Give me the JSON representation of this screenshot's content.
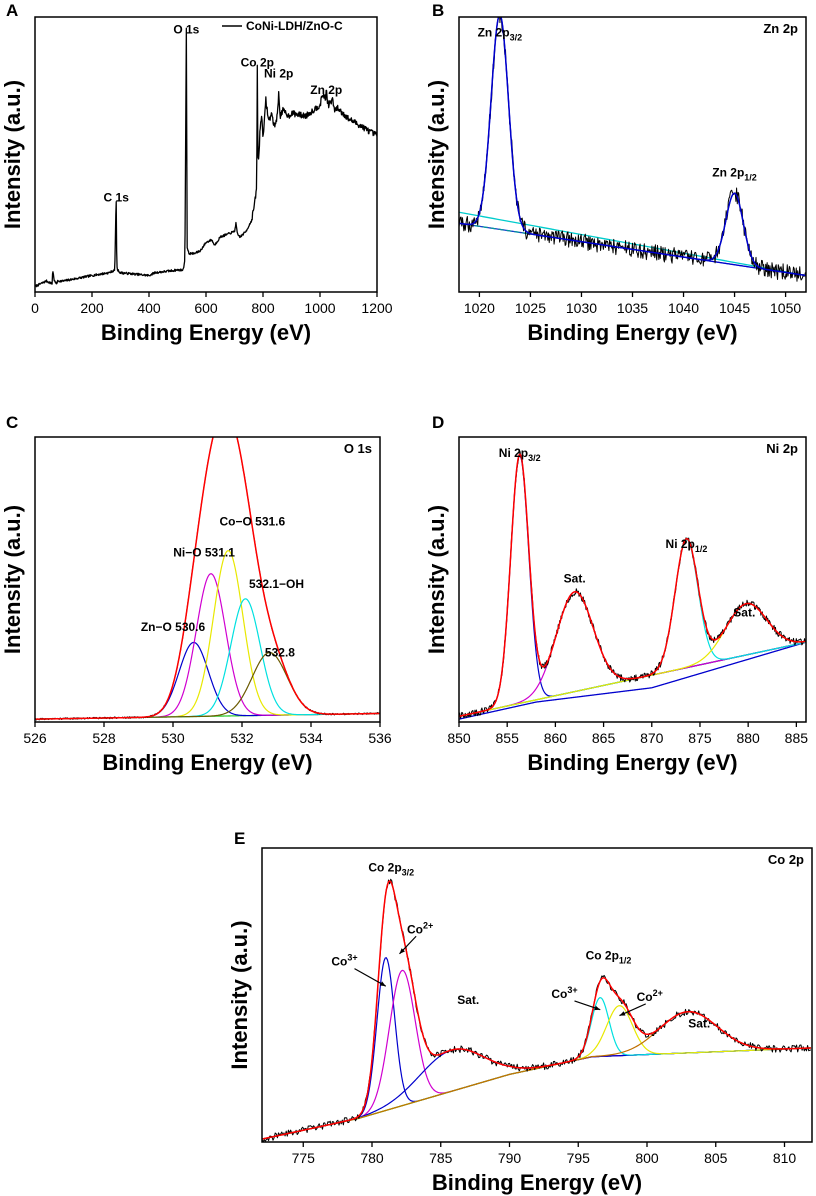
{
  "chart_data": [
    {
      "id": "A",
      "type": "line",
      "panel_label": "A",
      "title": "",
      "xlabel": "Binding Energy (eV)",
      "ylabel": "Intensity (a.u.)",
      "xlim": [
        0,
        1200
      ],
      "ylim": [
        0,
        100
      ],
      "xticks": [
        0,
        200,
        400,
        600,
        800,
        1000,
        1200
      ],
      "legend": [
        "CoNi-LDH/ZnO-C"
      ],
      "annotations": [
        {
          "text": "O 1s",
          "x": 531,
          "y": 94
        },
        {
          "text": "C 1s",
          "x": 285,
          "y": 33
        },
        {
          "text": "Co 2p",
          "x": 780,
          "y": 82
        },
        {
          "text": "Ni 2p",
          "x": 855,
          "y": 78
        },
        {
          "text": "Zn 2p",
          "x": 1022,
          "y": 72
        }
      ],
      "series": [
        {
          "name": "CoNi-LDH/ZnO-C",
          "color": "#000000",
          "x": [
            0,
            40,
            60,
            62,
            68,
            75,
            80,
            100,
            150,
            200,
            260,
            280,
            283,
            285,
            287,
            290,
            300,
            400,
            420,
            500,
            520,
            526,
            531,
            534,
            540,
            560,
            580,
            600,
            620,
            630,
            650,
            700,
            705,
            710,
            720,
            740,
            760,
            770,
            775,
            778,
            780,
            782,
            785,
            790,
            795,
            800,
            805,
            810,
            820,
            830,
            840,
            850,
            855,
            858,
            860,
            870,
            880,
            890,
            900,
            950,
            1000,
            1010,
            1020,
            1022,
            1025,
            1030,
            1045,
            1050,
            1060,
            1080,
            1100,
            1150,
            1180,
            1200
          ],
          "y": [
            2,
            4,
            3,
            8,
            4,
            3,
            4,
            4,
            5,
            6,
            7,
            8,
            26,
            33,
            9,
            8,
            7,
            6,
            7,
            8,
            8,
            12,
            96,
            16,
            14,
            14,
            15,
            18,
            19,
            17,
            20,
            22,
            25,
            21,
            20,
            22,
            26,
            32,
            35,
            40,
            82,
            50,
            48,
            60,
            64,
            57,
            62,
            70,
            62,
            65,
            60,
            64,
            72,
            68,
            64,
            66,
            65,
            64,
            65,
            64,
            68,
            72,
            70,
            75,
            70,
            68,
            70,
            66,
            67,
            65,
            63,
            60,
            58,
            57
          ]
        }
      ]
    },
    {
      "id": "B",
      "type": "line",
      "panel_label": "B",
      "title": "Zn 2p",
      "xlabel": "Binding Energy (eV)",
      "ylabel": "Intensity (a.u.)",
      "xlim": [
        1018,
        1052
      ],
      "ylim": [
        0,
        100
      ],
      "xticks": [
        1020,
        1025,
        1030,
        1035,
        1040,
        1045,
        1050
      ],
      "annotations": [
        {
          "text": "Zn 2p3/2",
          "main": "Zn 2p",
          "sub": "3/2",
          "x": 1022,
          "y": 93
        },
        {
          "text": "Zn 2p1/2",
          "main": "Zn 2p",
          "sub": "1/2",
          "x": 1045,
          "y": 42
        }
      ],
      "background": {
        "x": [
          1018,
          1052
        ],
        "y": [
          25,
          6
        ]
      },
      "shirley": {
        "x": [
          1018,
          1052
        ],
        "y": [
          29,
          6
        ]
      },
      "peaks": [
        {
          "name": "Zn 2p3/2",
          "center": 1022.0,
          "amplitude": 78,
          "fwhm": 2.0,
          "color": "#0000cd"
        },
        {
          "name": "Zn 2p1/2",
          "center": 1045.0,
          "amplitude": 26,
          "fwhm": 2.0,
          "color": "#009999"
        }
      ],
      "envelope_color": "#0000cd",
      "raw_color": "#000000"
    },
    {
      "id": "C",
      "type": "line",
      "panel_label": "C",
      "title": "O 1s",
      "xlabel": "Binding Energy (eV)",
      "ylabel": "Intensity (a.u.)",
      "xlim": [
        526,
        536
      ],
      "ylim": [
        0,
        100
      ],
      "xticks": [
        526,
        528,
        530,
        532,
        534,
        536
      ],
      "annotations": [
        {
          "text": "Co−O 531.6",
          "x": 532.3,
          "y": 69
        },
        {
          "text": "Ni−O 531.1",
          "x": 530.9,
          "y": 58
        },
        {
          "text": "532.1−OH",
          "x": 533.0,
          "y": 47
        },
        {
          "text": "Zn−O 530.6",
          "x": 530.0,
          "y": 32
        },
        {
          "text": "532.8",
          "x": 533.1,
          "y": 23
        }
      ],
      "background": {
        "x": [
          526,
          536
        ],
        "y": [
          1,
          3
        ]
      },
      "peaks": [
        {
          "name": "Zn−O",
          "center": 530.6,
          "amplitude": 26,
          "fwhm": 1.0,
          "color": "#0000cd"
        },
        {
          "name": "Ni−O",
          "center": 531.1,
          "amplitude": 50,
          "fwhm": 1.0,
          "color": "#d000d0"
        },
        {
          "name": "Co−O",
          "center": 531.6,
          "amplitude": 58,
          "fwhm": 1.0,
          "color": "#e8e800"
        },
        {
          "name": "OH",
          "center": 532.1,
          "amplitude": 41,
          "fwhm": 1.0,
          "color": "#00e0e0"
        },
        {
          "name": "532.8",
          "center": 532.8,
          "amplitude": 22,
          "fwhm": 1.2,
          "color": "#6b5a00"
        }
      ],
      "envelope_color": "#ff0000",
      "raw_color": "#000000"
    },
    {
      "id": "D",
      "type": "line",
      "panel_label": "D",
      "title": "Ni 2p",
      "xlabel": "Binding Energy (eV)",
      "ylabel": "Intensity (a.u.)",
      "xlim": [
        850,
        886
      ],
      "ylim": [
        0,
        100
      ],
      "xticks": [
        850,
        855,
        860,
        865,
        870,
        875,
        880,
        885
      ],
      "annotations": [
        {
          "text": "Ni 2p3/2",
          "main": "Ni 2p",
          "sub": "3/2",
          "x": 856.3,
          "y": 93
        },
        {
          "text": "Sat.",
          "x": 862.0,
          "y": 49
        },
        {
          "text": "Ni 2p1/2",
          "main": "Ni 2p",
          "sub": "1/2",
          "x": 873.6,
          "y": 61
        },
        {
          "text": "Sat.",
          "x": 879.6,
          "y": 37
        }
      ],
      "background": {
        "x": [
          850,
          886
        ],
        "y": [
          2,
          28
        ]
      },
      "shirley": {
        "x": [
          850,
          858,
          870,
          886
        ],
        "y": [
          1,
          7,
          12,
          28
        ]
      },
      "peaks": [
        {
          "name": "Ni 2p3/2",
          "center": 856.3,
          "amplitude": 87,
          "fwhm": 2.2,
          "color": "#0000cd"
        },
        {
          "name": "Sat.",
          "center": 862.0,
          "amplitude": 35,
          "fwhm": 4.5,
          "color": "#d000d0"
        },
        {
          "name": "Ni 2p1/2",
          "center": 873.6,
          "amplitude": 45,
          "fwhm": 2.8,
          "color": "#00e0e0"
        },
        {
          "name": "Sat.",
          "center": 879.8,
          "amplitude": 18,
          "fwhm": 5.0,
          "color": "#e8e800"
        }
      ],
      "envelope_color": "#ff0000",
      "raw_color": "#000000"
    },
    {
      "id": "E",
      "type": "line",
      "panel_label": "E",
      "title": "Co 2p",
      "xlabel": "Binding Energy (eV)",
      "ylabel": "Intensity (a.u.)",
      "xlim": [
        772,
        812
      ],
      "ylim": [
        0,
        100
      ],
      "xticks": [
        775,
        780,
        785,
        790,
        795,
        800,
        805,
        810
      ],
      "annotations": [
        {
          "text": "Co 2p3/2",
          "main": "Co 2p",
          "sub": "3/2",
          "x": 781.4,
          "y": 92
        },
        {
          "text": "Co3+",
          "main": "Co",
          "sup": "3+",
          "x": 778.0,
          "y": 60
        },
        {
          "text": "Co2+",
          "main": "Co",
          "sup": "2+",
          "x": 783.5,
          "y": 71
        },
        {
          "text": "Sat.",
          "x": 787.0,
          "y": 47
        },
        {
          "text": "Co 2p1/2",
          "main": "Co 2p",
          "sub": "1/2",
          "x": 797.2,
          "y": 62
        },
        {
          "text": "Co3+",
          "main": "Co",
          "sup": "3+",
          "x": 794.0,
          "y": 49
        },
        {
          "text": "Co2+",
          "main": "Co",
          "sup": "2+",
          "x": 800.2,
          "y": 48
        },
        {
          "text": "Sat.",
          "x": 803.8,
          "y": 39
        }
      ],
      "background": {
        "x": [
          772,
          779,
          790,
          796,
          812
        ],
        "y": [
          1,
          8,
          23,
          29,
          32
        ]
      },
      "peaks": [
        {
          "name": "Co3+ (2p3/2)",
          "center": 781.0,
          "amplitude": 52,
          "fwhm": 1.5,
          "color": "#0000cd"
        },
        {
          "name": "Co2+ (2p3/2)",
          "center": 782.2,
          "amplitude": 46,
          "fwhm": 2.2,
          "color": "#d000d0"
        },
        {
          "name": "Sat. (2p3/2)",
          "center": 785.8,
          "amplitude": 14,
          "fwhm": 5.5,
          "color": "#0000cd"
        },
        {
          "name": "Co3+ (2p1/2)",
          "center": 796.6,
          "amplitude": 20,
          "fwhm": 1.5,
          "color": "#00e0e0"
        },
        {
          "name": "Co2+ (2p1/2)",
          "center": 798.0,
          "amplitude": 17,
          "fwhm": 2.2,
          "color": "#e8e800"
        },
        {
          "name": "Sat. (2p1/2)",
          "center": 803.0,
          "amplitude": 14,
          "fwhm": 5.0,
          "color": "#c07000"
        }
      ],
      "envelope_color": "#ff0000",
      "raw_color": "#000000"
    }
  ]
}
